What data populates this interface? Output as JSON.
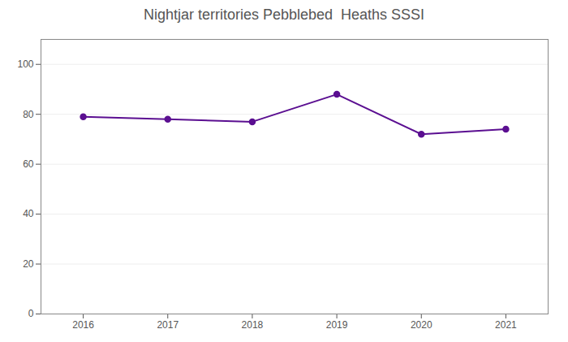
{
  "chart_data": {
    "type": "line",
    "title": "Nightjar territories Pebblebed  Heaths SSSI",
    "x": [
      2016,
      2017,
      2018,
      2019,
      2020,
      2021
    ],
    "values": [
      79,
      78,
      77,
      88,
      72,
      74
    ],
    "color": "#5B0F91",
    "marker": "circle",
    "xlim": [
      2015.5,
      2021.5
    ],
    "xticks": [
      2016,
      2017,
      2018,
      2019,
      2020,
      2021
    ],
    "ylim": [
      0,
      110
    ],
    "yticks": [
      0,
      20,
      40,
      60,
      80,
      100
    ],
    "grid": true
  }
}
